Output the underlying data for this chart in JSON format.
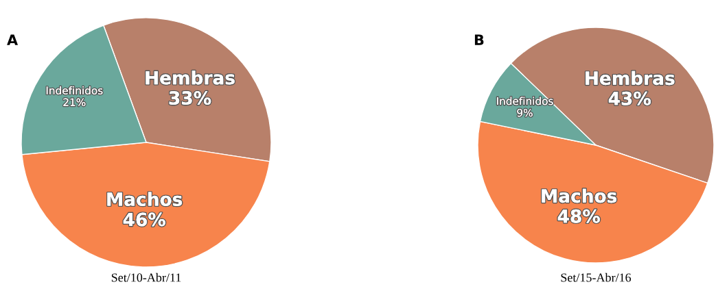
{
  "chart_data": [
    {
      "type": "pie",
      "title": "A",
      "categories": [
        "Hembras",
        "Machos",
        "Indefinidos"
      ],
      "values": [
        33,
        46,
        21
      ],
      "value_labels": [
        "33%",
        "46%",
        "21%"
      ],
      "colors": [
        "#b8806a",
        "#f7844c",
        "#6aa89c"
      ],
      "annotations": [
        "Set/10-Abr/11"
      ],
      "legend": false
    },
    {
      "type": "pie",
      "title": "B",
      "categories": [
        "Hembras",
        "Machos",
        "Indefinidos"
      ],
      "values": [
        43,
        48,
        9
      ],
      "value_labels": [
        "43%",
        "48%",
        "9%"
      ],
      "colors": [
        "#b8806a",
        "#f7844c",
        "#6aa89c"
      ],
      "annotations": [
        "Set/15-Abr/16"
      ],
      "legend": false
    }
  ]
}
